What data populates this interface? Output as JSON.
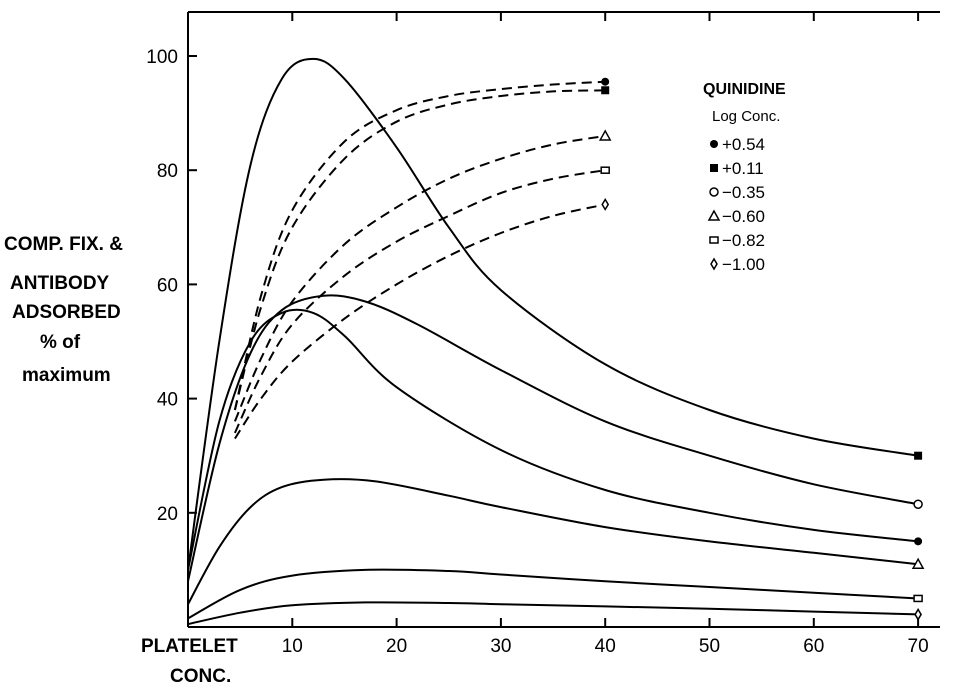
{
  "chart_data": {
    "type": "line",
    "title": "",
    "xlabel": [
      "PLATELET",
      "CONC."
    ],
    "ylabel": [
      "COMP. FIX. &",
      "ANTIBODY",
      "ADSORBED",
      "% of",
      "maximum"
    ],
    "xlim": [
      0,
      75
    ],
    "ylim": [
      0,
      100
    ],
    "xticks": [
      10,
      20,
      30,
      40,
      50,
      60,
      70
    ],
    "xtick_labels": [
      "10",
      "20",
      "30",
      "40",
      "50",
      "60",
      "70"
    ],
    "yticks": [
      20,
      40,
      60,
      80,
      100
    ],
    "ytick_labels": [
      "20",
      "40",
      "60",
      "80",
      "100"
    ],
    "grid": false,
    "legend": {
      "title": "QUINIDINE",
      "subtitle": "Log Conc.",
      "placement": "top-right",
      "entries": [
        {
          "marker": "filled-circle",
          "label": "+0.54"
        },
        {
          "marker": "filled-square",
          "label": "+0.11"
        },
        {
          "marker": "open-circle",
          "label": "−0.35"
        },
        {
          "marker": "open-triangle",
          "label": "−0.60"
        },
        {
          "marker": "open-square",
          "label": "−0.82"
        },
        {
          "marker": "open-diamond",
          "label": "−1.00"
        }
      ]
    },
    "series": [
      {
        "group": "complement_fixation",
        "style": "solid",
        "marker": "filled-square",
        "x": [
          0,
          3,
          6,
          9,
          12,
          15,
          20,
          25,
          30,
          40,
          50,
          60,
          70
        ],
        "y": [
          10,
          50,
          81,
          96,
          99.5,
          96,
          84,
          70,
          59,
          46,
          38,
          33,
          30
        ]
      },
      {
        "group": "complement_fixation",
        "style": "solid",
        "marker": "open-circle",
        "x": [
          0,
          3,
          6,
          9,
          13,
          17,
          22,
          30,
          40,
          50,
          60,
          70
        ],
        "y": [
          8,
          32,
          48,
          55.5,
          58,
          57,
          53,
          45,
          36,
          30,
          25,
          21.5
        ]
      },
      {
        "group": "complement_fixation",
        "style": "solid",
        "marker": "filled-circle",
        "x": [
          0,
          3,
          6,
          9,
          12,
          15,
          20,
          30,
          40,
          50,
          60,
          70
        ],
        "y": [
          10,
          36,
          50,
          55,
          55,
          51,
          42,
          31,
          24,
          20,
          17,
          15
        ]
      },
      {
        "group": "complement_fixation",
        "style": "solid",
        "marker": "open-triangle",
        "x": [
          0,
          3,
          6,
          9,
          13,
          18,
          25,
          30,
          40,
          50,
          60,
          70
        ],
        "y": [
          4,
          14,
          21,
          24.5,
          25.8,
          25.5,
          23,
          21,
          17.5,
          15,
          13,
          11
        ]
      },
      {
        "group": "complement_fixation",
        "style": "solid",
        "marker": "open-square",
        "x": [
          0,
          5,
          10,
          17,
          25,
          30,
          40,
          50,
          60,
          70
        ],
        "y": [
          1.5,
          6.5,
          9,
          10,
          9.8,
          9.2,
          8,
          7,
          6,
          5
        ]
      },
      {
        "group": "complement_fixation",
        "style": "solid",
        "marker": "open-diamond",
        "x": [
          0,
          5,
          10,
          17,
          25,
          30,
          40,
          50,
          60,
          70
        ],
        "y": [
          0.5,
          2.5,
          3.8,
          4.3,
          4.2,
          4,
          3.6,
          3.2,
          2.7,
          2.2
        ]
      },
      {
        "group": "antibody_adsorbed",
        "style": "dashed",
        "marker": "filled-circle",
        "x": [
          4.5,
          7,
          10,
          15,
          20,
          25,
          30,
          35,
          40
        ],
        "y": [
          38,
          58,
          73,
          85,
          90.5,
          93,
          94.2,
          95,
          95.5
        ]
      },
      {
        "group": "antibody_adsorbed",
        "style": "dashed",
        "marker": "filled-square",
        "x": [
          4.5,
          7,
          10,
          15,
          20,
          25,
          30,
          35,
          40
        ],
        "y": [
          38,
          56,
          70,
          82,
          88.5,
          91.5,
          93,
          93.8,
          94
        ]
      },
      {
        "group": "antibody_adsorbed",
        "style": "dashed",
        "marker": "open-triangle",
        "x": [
          4.5,
          7,
          10,
          15,
          20,
          25,
          30,
          35,
          40
        ],
        "y": [
          36,
          47,
          57,
          67,
          73.5,
          78.5,
          82,
          84.5,
          86
        ]
      },
      {
        "group": "antibody_adsorbed",
        "style": "dashed",
        "marker": "open-square",
        "x": [
          4.5,
          7,
          10,
          15,
          20,
          25,
          30,
          35,
          40
        ],
        "y": [
          34,
          44,
          53,
          61.5,
          67.5,
          72,
          76,
          78.5,
          80
        ]
      },
      {
        "group": "antibody_adsorbed",
        "style": "dashed",
        "marker": "open-diamond",
        "x": [
          4.5,
          7,
          10,
          15,
          20,
          25,
          30,
          35,
          40
        ],
        "y": [
          33,
          40,
          46.5,
          54,
          60,
          65,
          69,
          72,
          74
        ]
      }
    ],
    "end_markers": [
      {
        "x": 40,
        "y": 95.5,
        "marker": "filled-circle"
      },
      {
        "x": 40,
        "y": 94,
        "marker": "filled-square"
      },
      {
        "x": 40,
        "y": 86,
        "marker": "open-triangle"
      },
      {
        "x": 40,
        "y": 80,
        "marker": "open-square"
      },
      {
        "x": 40,
        "y": 74,
        "marker": "open-diamond"
      },
      {
        "x": 70,
        "y": 30,
        "marker": "filled-square"
      },
      {
        "x": 70,
        "y": 21.5,
        "marker": "open-circle"
      },
      {
        "x": 70,
        "y": 15,
        "marker": "filled-circle"
      },
      {
        "x": 70,
        "y": 11,
        "marker": "open-triangle"
      },
      {
        "x": 70,
        "y": 5,
        "marker": "open-square"
      },
      {
        "x": 70,
        "y": 2.2,
        "marker": "open-diamond"
      }
    ]
  }
}
